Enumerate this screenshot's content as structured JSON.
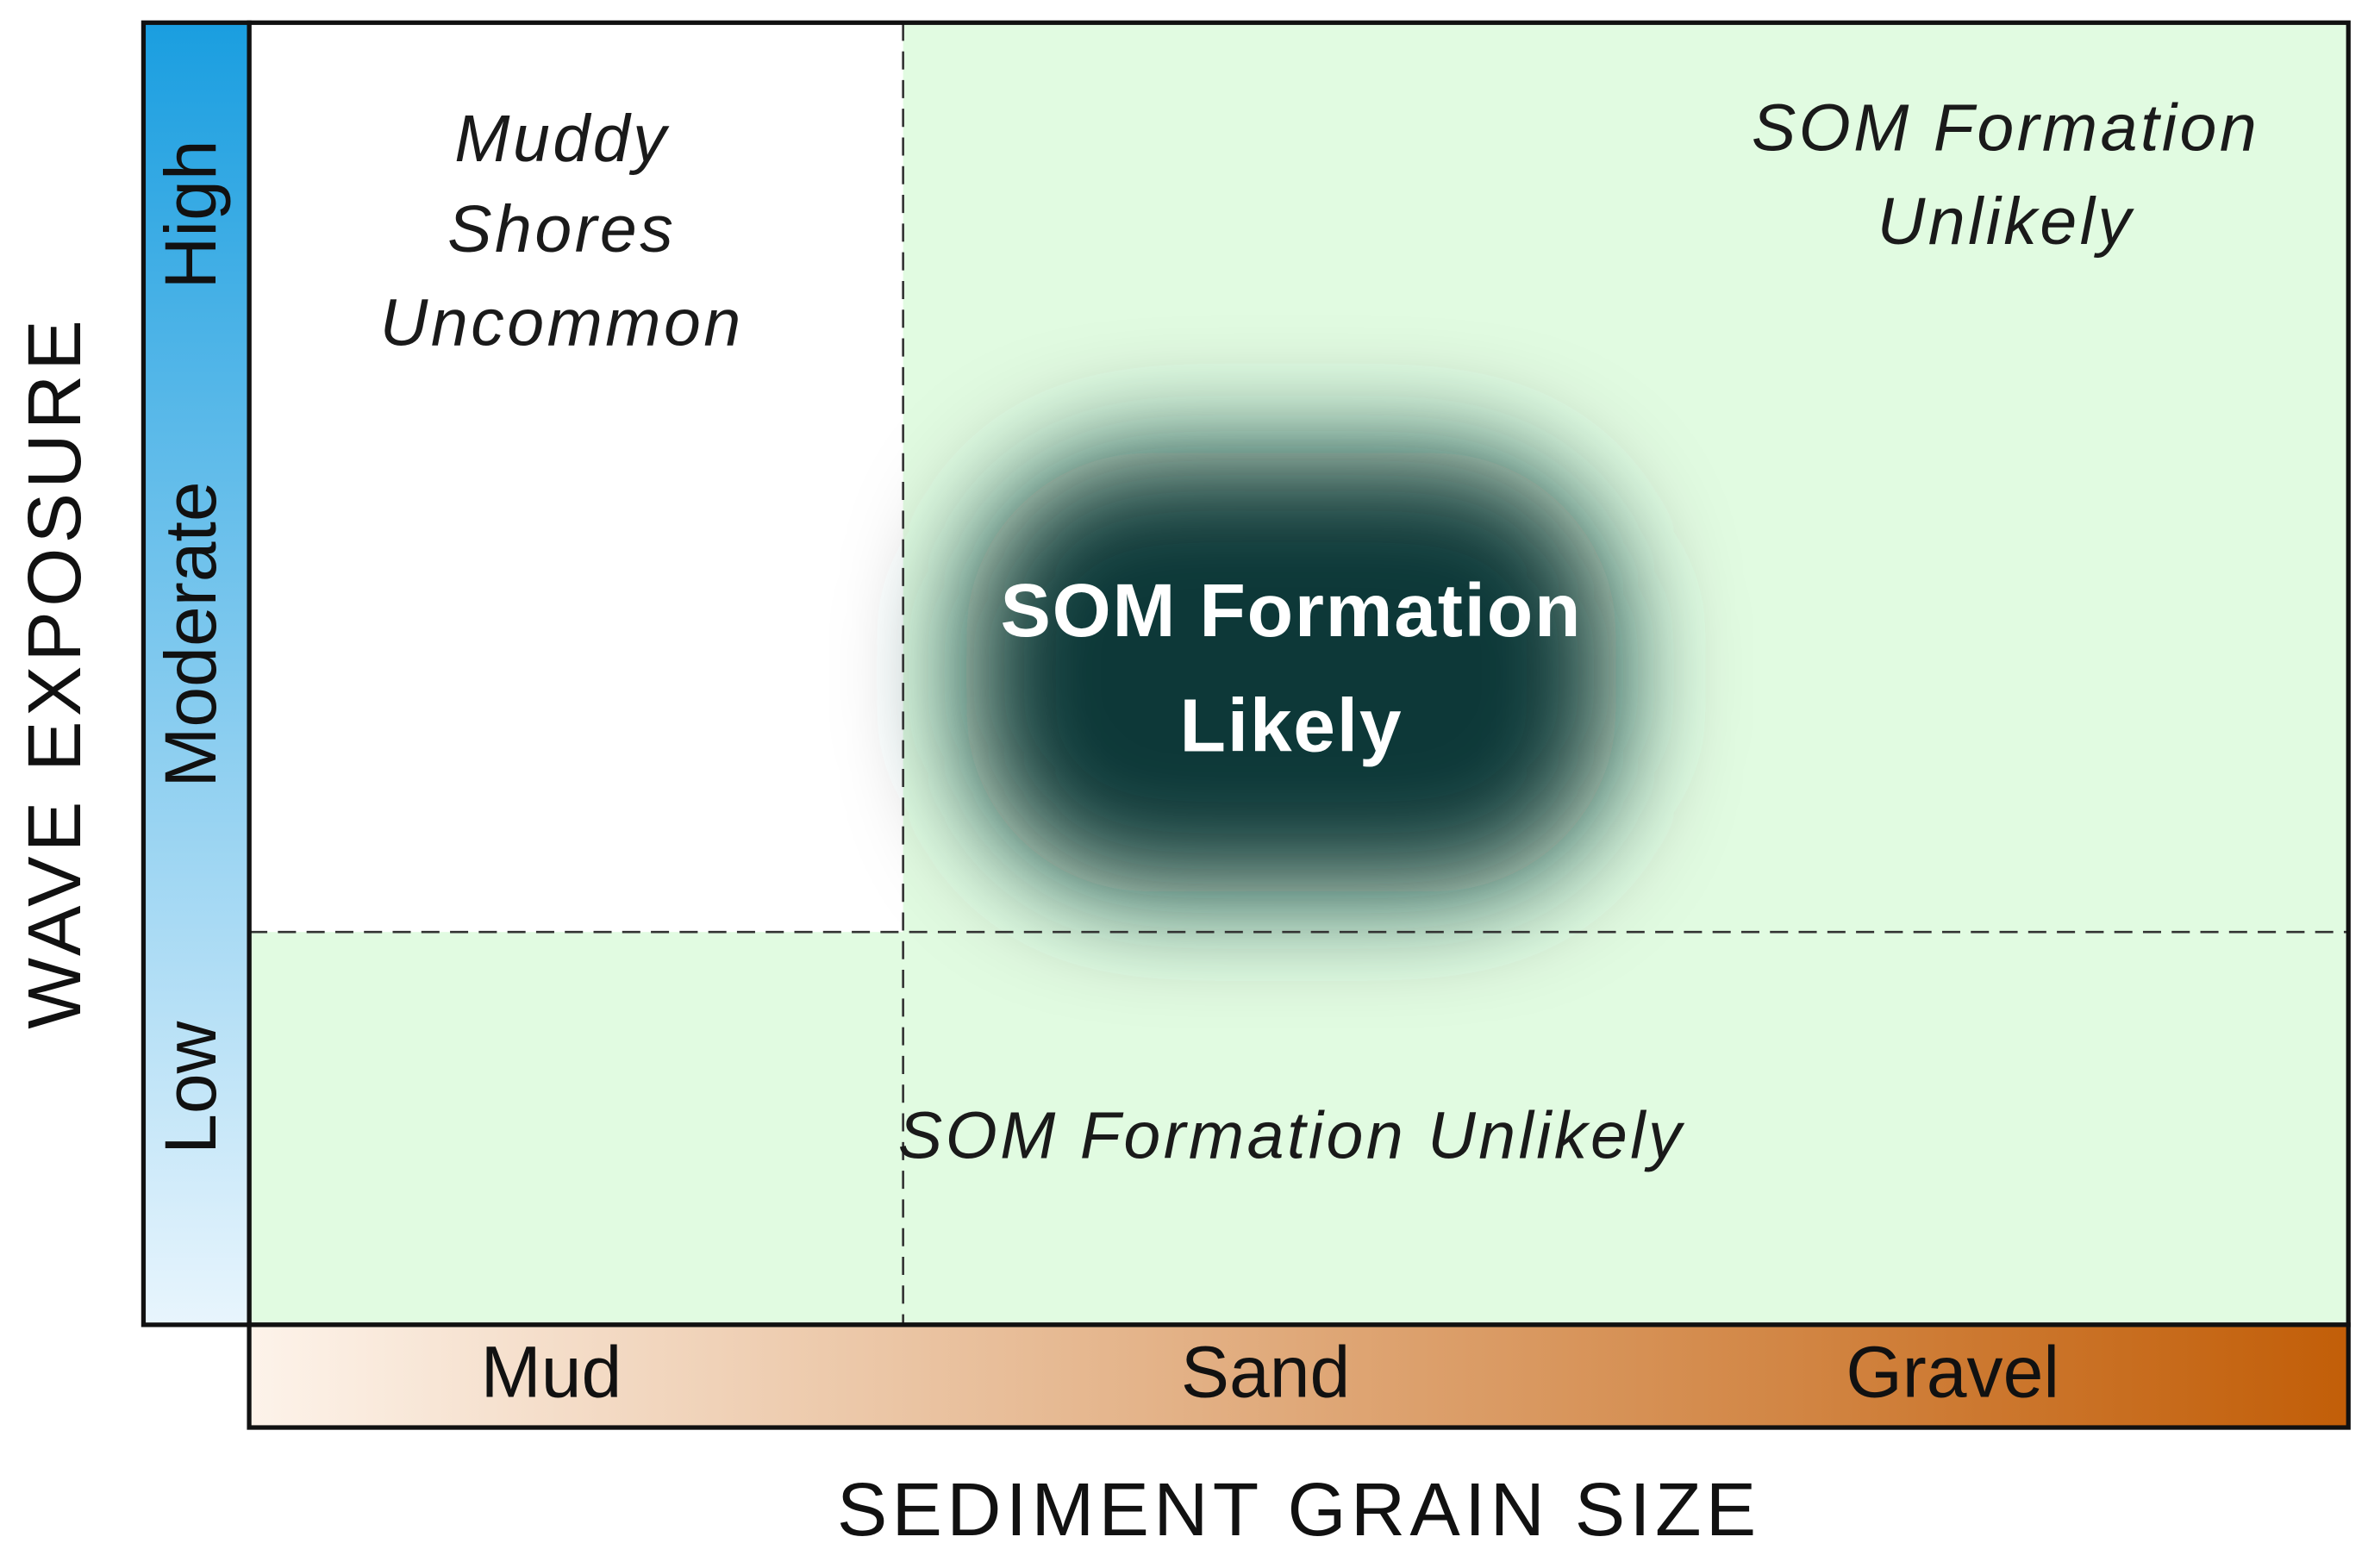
{
  "y_axis": {
    "title": "WAVE EXPOSURE",
    "levels": [
      "Low",
      "Moderate",
      "High"
    ]
  },
  "x_axis": {
    "title": "SEDIMENT GRAIN SIZE",
    "levels": [
      "Mud",
      "Sand",
      "Gravel"
    ]
  },
  "regions": [
    {
      "lines": [
        "Muddy",
        "Shores",
        "Uncommon"
      ]
    },
    {
      "lines": [
        "SOM Formation",
        "Unlikely"
      ]
    },
    {
      "lines": [
        "SOM Formation",
        "Likely"
      ]
    },
    {
      "lines": [
        "SOM Formation Unlikely"
      ]
    }
  ]
}
